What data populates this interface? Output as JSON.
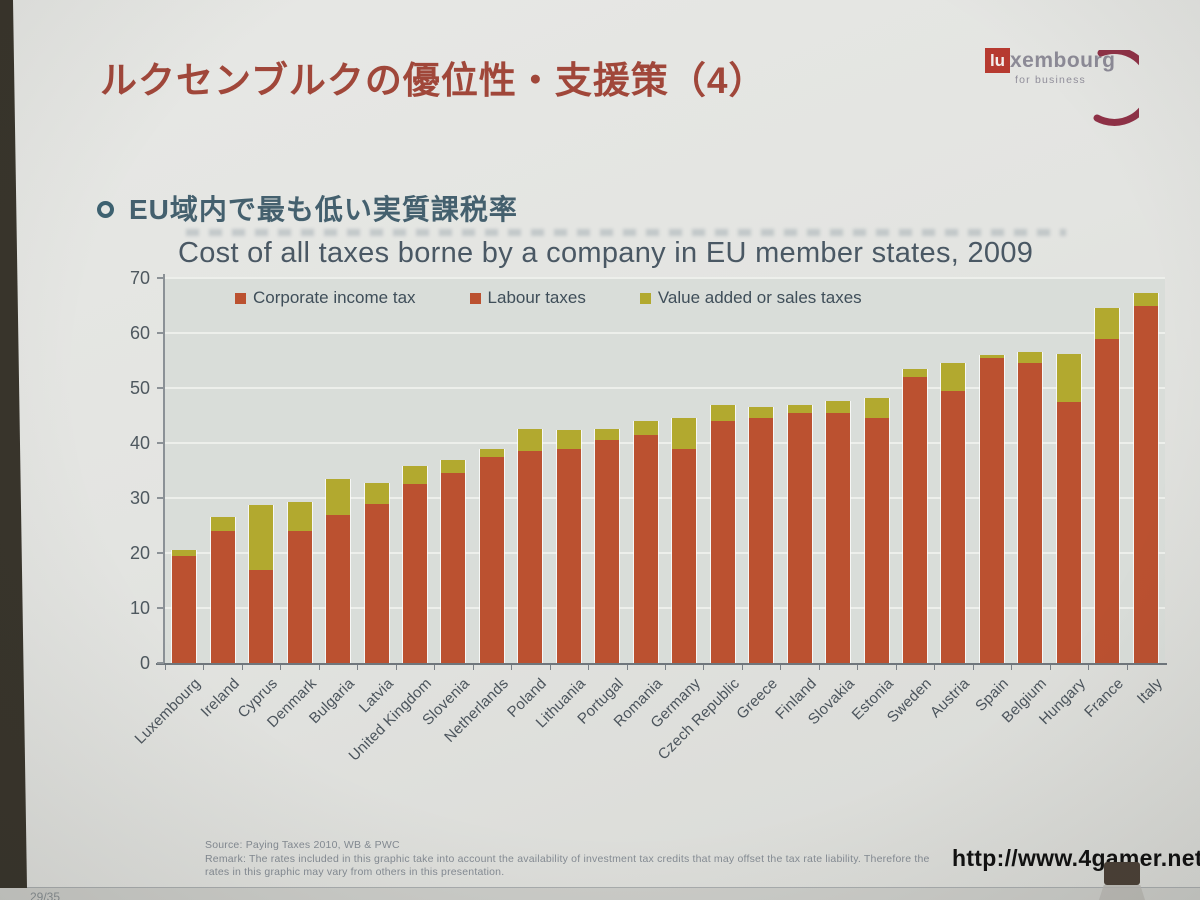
{
  "photo": {
    "watermark": "http://www.4gamer.net/",
    "page_fragment": "29/35"
  },
  "slide": {
    "title": "ルクセンブルクの優位性・支援策（4）",
    "logo": {
      "lu": "lu",
      "rest": "xembourg",
      "tagline": "for business"
    },
    "bullet_heading": "EU域内で最も低い実質課税率",
    "source_line1": "Source: Paying Taxes 2010, WB & PWC",
    "source_line2": "Remark: The rates included in this graphic take into account the availability of investment tax credits that may offset the tax rate liability. Therefore the",
    "source_line3": "rates in this graphic may vary from others in this presentation."
  },
  "chart_data": {
    "type": "bar",
    "stacked": true,
    "title": "Cost of all taxes borne by a company in EU member states, 2009",
    "xlabel": "",
    "ylabel": "",
    "ylim": [
      0,
      70
    ],
    "yticks": [
      0,
      10,
      20,
      30,
      40,
      50,
      60,
      70
    ],
    "grid": true,
    "legend_position": "top-inside",
    "legend": [
      "Corporate income tax",
      "Labour taxes",
      "Value added or sales taxes"
    ],
    "legend_colors": [
      "#bb5130",
      "#bb5130",
      "#b2a92f"
    ],
    "categories": [
      "Luxembourg",
      "Ireland",
      "Cyprus",
      "Denmark",
      "Bulgaria",
      "Latvia",
      "United Kingdom",
      "Slovenia",
      "Netherlands",
      "Poland",
      "Lithuania",
      "Portugal",
      "Romania",
      "Germany",
      "Czech Republic",
      "Greece",
      "Finland",
      "Slovakia",
      "Estonia",
      "Sweden",
      "Austria",
      "Spain",
      "Belgium",
      "Hungary",
      "France",
      "Italy"
    ],
    "series": [
      {
        "name": "Corporate income tax + Labour taxes",
        "color": "#bb5130",
        "values": [
          19.5,
          24,
          17,
          24,
          27,
          29,
          32.5,
          34.5,
          37.5,
          38.5,
          39,
          40.5,
          41.5,
          39,
          44,
          44.5,
          45.5,
          45.5,
          44.5,
          52,
          49.5,
          55.5,
          54.5,
          47.5,
          59,
          65
        ]
      },
      {
        "name": "Value added or sales taxes",
        "color": "#b2a92f",
        "values": [
          1,
          2.5,
          11.8,
          5.2,
          6.4,
          3.8,
          3.4,
          2.5,
          1.5,
          4,
          3.4,
          2,
          2.5,
          5.5,
          3,
          2,
          1.4,
          2.1,
          3.7,
          1.5,
          5,
          0.5,
          2,
          8.7,
          5.6,
          2.3
        ]
      }
    ],
    "totals": [
      20.5,
      26.5,
      28.8,
      29.2,
      33.4,
      32.8,
      35.9,
      37,
      39,
      42.5,
      42.4,
      42.5,
      44,
      44.5,
      47,
      46.5,
      46.9,
      47.6,
      48.2,
      53.5,
      54.5,
      56,
      56.5,
      56.2,
      64.6,
      67.3
    ]
  },
  "colors": {
    "bar_red": "#bb5130",
    "bar_yellow": "#b2a92f",
    "slide_title": "#a0473a",
    "heading_text": "#44606e",
    "chart_text": "#4a5864",
    "logo_red": "#b63a30",
    "logo_swoosh": "#8e3146",
    "plot_bg": "#d9ddd9"
  }
}
